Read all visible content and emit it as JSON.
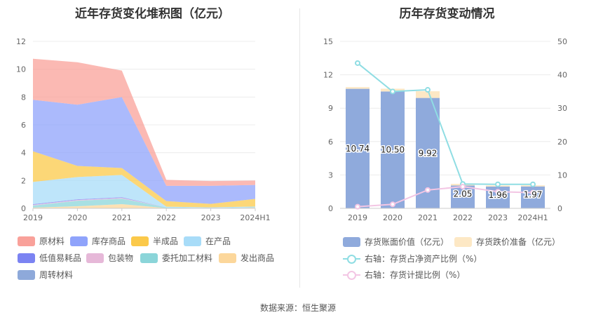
{
  "left": {
    "title": "近年存货变化堆积图（亿元）",
    "legend": [
      {
        "label": "原材料",
        "color": "#f9a19a"
      },
      {
        "label": "库存商品",
        "color": "#8fa3fb"
      },
      {
        "label": "半成品",
        "color": "#fbc94a"
      },
      {
        "label": "在产品",
        "color": "#a8dcf8"
      },
      {
        "label": "低值易耗品",
        "color": "#7b83f2"
      },
      {
        "label": "包装物",
        "color": "#e6b8d8"
      },
      {
        "label": "委托加工材料",
        "color": "#8bd5d9"
      },
      {
        "label": "发出商品",
        "color": "#fcd79b"
      },
      {
        "label": "周转材料",
        "color": "#8ea9da"
      }
    ]
  },
  "right": {
    "title": "历年存货变动情况",
    "legend": [
      {
        "label": "存货账面价值（亿元）",
        "color": "#8faadc",
        "kind": "box"
      },
      {
        "label": "存货跌价准备（亿元）",
        "color": "#fde8c5",
        "kind": "box"
      },
      {
        "label": "右轴：存货占净资产比例（%）",
        "color": "#8fdde3",
        "kind": "line"
      },
      {
        "label": "右轴：存货计提比例（%）",
        "color": "#f3c6e4",
        "kind": "line"
      }
    ]
  },
  "source": "数据来源：恒生聚源",
  "chart_data": [
    {
      "type": "area",
      "stacked": true,
      "title": "近年存货变化堆积图（亿元）",
      "categories": [
        "2019",
        "2020",
        "2021",
        "2022",
        "2023",
        "2024H1"
      ],
      "ylim": [
        0,
        12
      ],
      "yticks": [
        "0",
        "2",
        "4",
        "6",
        "8",
        "10",
        "12"
      ],
      "series": [
        {
          "name": "周转材料",
          "color": "#8ea9da",
          "values": [
            0.0,
            0.0,
            0.0,
            0.0,
            0.0,
            0.0
          ]
        },
        {
          "name": "发出商品",
          "color": "#fcd79b",
          "values": [
            0.05,
            0.15,
            0.3,
            0.02,
            0.0,
            0.05
          ]
        },
        {
          "name": "委托加工材料",
          "color": "#8bd5d9",
          "values": [
            0.15,
            0.4,
            0.4,
            0.05,
            0.02,
            0.03
          ]
        },
        {
          "name": "包装物",
          "color": "#e6b8d8",
          "values": [
            0.05,
            0.05,
            0.05,
            0.0,
            0.0,
            0.0
          ]
        },
        {
          "name": "低值易耗品",
          "color": "#7b83f2",
          "values": [
            0.05,
            0.05,
            0.05,
            0.0,
            0.0,
            0.0
          ]
        },
        {
          "name": "在产品",
          "color": "#a8dcf8",
          "values": [
            1.6,
            1.6,
            1.6,
            0.05,
            0.05,
            0.05
          ]
        },
        {
          "name": "半成品",
          "color": "#fbc94a",
          "values": [
            2.2,
            0.8,
            0.5,
            0.4,
            0.25,
            0.55
          ]
        },
        {
          "name": "库存商品",
          "color": "#8fa3fb",
          "values": [
            3.7,
            4.4,
            5.1,
            1.1,
            1.3,
            1.0
          ]
        },
        {
          "name": "原材料",
          "color": "#f9a19a",
          "values": [
            2.95,
            3.05,
            1.9,
            0.43,
            0.34,
            0.32
          ]
        }
      ]
    },
    {
      "type": "bar",
      "stacked": true,
      "title": "历年存货变动情况",
      "categories": [
        "2019",
        "2020",
        "2021",
        "2022",
        "2023",
        "2024H1"
      ],
      "ylim": [
        0,
        15
      ],
      "yticks": [
        "0",
        "3",
        "6",
        "9",
        "12",
        "15"
      ],
      "y2lim": [
        0,
        50
      ],
      "y2ticks": [
        "0",
        "10",
        "20",
        "30",
        "40",
        "50"
      ],
      "series": [
        {
          "name": "存货账面价值（亿元）",
          "color": "#8faadc",
          "values": [
            10.74,
            10.5,
            9.92,
            2.05,
            1.96,
            1.97
          ],
          "labels": [
            "10.74",
            "10.50",
            "9.92",
            "2.05",
            "1.96",
            "1.97"
          ]
        },
        {
          "name": "存货跌价准备（亿元）",
          "color": "#fde8c5",
          "values": [
            0.15,
            0.25,
            0.6,
            0.15,
            0.1,
            0.1
          ]
        }
      ],
      "lines": [
        {
          "name": "右轴：存货占净资产比例（%）",
          "axis": "right",
          "color": "#8fdde3",
          "values": [
            43.5,
            35.0,
            35.5,
            7.3,
            7.2,
            7.2
          ]
        },
        {
          "name": "右轴：存货计提比例（%）",
          "axis": "right",
          "color": "#f3c6e4",
          "values": [
            0.5,
            1.2,
            5.5,
            6.5,
            5.0,
            4.7
          ]
        }
      ]
    }
  ]
}
